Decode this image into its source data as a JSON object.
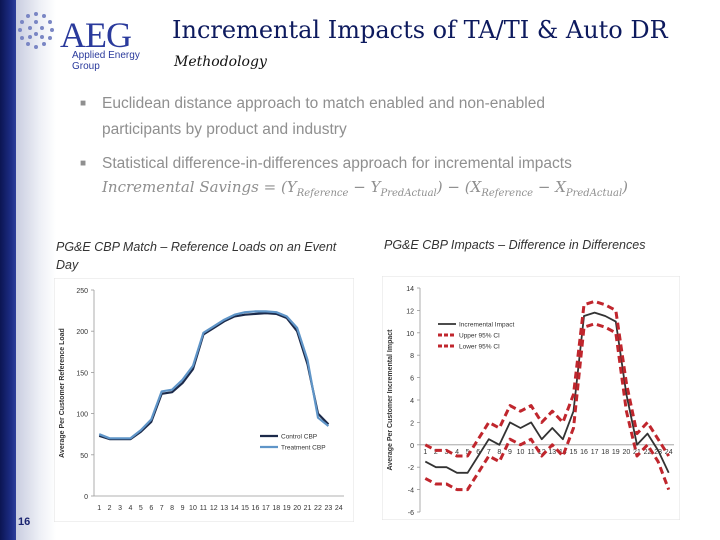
{
  "slide": {
    "title": "Incremental Impacts of TA/TI & Auto DR",
    "subtitle": "Methodology",
    "page_number": "16"
  },
  "logo": {
    "word": "AEG",
    "tagline": "Applied Energy Group",
    "color": "#2a3a9c"
  },
  "bullets": [
    {
      "line1": "Euclidean distance approach to match enabled and non-enabled",
      "line2": "participants by product and industry"
    },
    {
      "line1": "Statistical difference-in-differences approach for incremental impacts"
    }
  ],
  "formula": {
    "lhs": "Incremental Savings",
    "eq": "=",
    "open1": "(",
    "y1": "Y",
    "y1_sub": "Reference",
    "minus": "−",
    "y2": "Y",
    "y2_sub": "PredActual",
    "close1": ")",
    "minus2": "−",
    "open2": "(",
    "x1": "X",
    "x1_sub": "Reference",
    "minus3": "−",
    "x2": "X",
    "x2_sub": "PredActual",
    "close2": ")"
  },
  "captions": {
    "left": "PG&E CBP Match – Reference Loads on an Event Day",
    "right": "PG&E CBP Impacts – Difference in Differences"
  },
  "chart_data": [
    {
      "type": "line",
      "ylabel": "Average Per Customer Reference Load",
      "ylim": [
        0,
        250
      ],
      "yticks": [
        "0",
        "50",
        "100",
        "150",
        "200",
        "250"
      ],
      "categories": [
        "1",
        "2",
        "3",
        "4",
        "5",
        "6",
        "7",
        "8",
        "9",
        "10",
        "11",
        "12",
        "13",
        "14",
        "15",
        "16",
        "17",
        "18",
        "19",
        "20",
        "21",
        "22",
        "23",
        "24"
      ],
      "legend_position": "bottom-right",
      "series": [
        {
          "name": "Control CBP",
          "color": "#1c2a4a",
          "values": [
            73,
            69,
            69,
            69,
            78,
            90,
            124,
            126,
            137,
            154,
            196,
            204,
            212,
            218,
            220,
            221,
            222,
            221,
            216,
            200,
            160,
            100,
            87,
            null
          ]
        },
        {
          "name": "Treatment CBP",
          "color": "#5f95c8",
          "values": [
            75,
            70,
            70,
            70,
            80,
            93,
            127,
            129,
            141,
            158,
            198,
            206,
            214,
            220,
            223,
            224,
            224,
            223,
            218,
            204,
            165,
            95,
            85,
            null
          ]
        }
      ]
    },
    {
      "type": "line",
      "ylabel": "Average Per Customer Incremental Impact",
      "ylim": [
        -6,
        14
      ],
      "yticks": [
        "-6",
        "-4",
        "-2",
        "0",
        "2",
        "4",
        "6",
        "8",
        "10",
        "12",
        "14"
      ],
      "categories": [
        "1",
        "2",
        "3",
        "4",
        "5",
        "6",
        "7",
        "8",
        "9",
        "10",
        "11",
        "12",
        "13",
        "14",
        "15",
        "16",
        "17",
        "18",
        "19",
        "20",
        "21",
        "22",
        "23",
        "24"
      ],
      "legend_position": "top-left",
      "series": [
        {
          "name": "Incremental Impact",
          "color": "#333333",
          "values": [
            -1.5,
            -2.0,
            -2.0,
            -2.5,
            -2.5,
            -1.0,
            0.5,
            0.0,
            2.0,
            1.5,
            2.0,
            0.5,
            1.5,
            0.5,
            3.0,
            11.5,
            11.8,
            11.5,
            11.0,
            4.5,
            0.0,
            1.0,
            -0.5,
            -2.5
          ]
        },
        {
          "name": "Upper 95% CI",
          "color": "#c0262d",
          "values": [
            0.0,
            -0.5,
            -0.5,
            -1.0,
            -1.0,
            0.5,
            2.0,
            1.5,
            3.5,
            3.0,
            3.5,
            2.0,
            3.0,
            2.0,
            4.5,
            12.5,
            12.8,
            12.5,
            12.0,
            5.5,
            1.0,
            2.0,
            0.5,
            -1.0
          ]
        },
        {
          "name": "Lower 95% CI",
          "color": "#c0262d",
          "values": [
            -3.0,
            -3.5,
            -3.5,
            -4.0,
            -4.0,
            -2.5,
            -1.0,
            -1.5,
            0.5,
            0.0,
            0.5,
            -1.0,
            0.0,
            -1.0,
            1.5,
            10.5,
            10.8,
            10.5,
            10.0,
            3.0,
            -1.0,
            0.0,
            -1.5,
            -4.0
          ]
        }
      ]
    }
  ]
}
